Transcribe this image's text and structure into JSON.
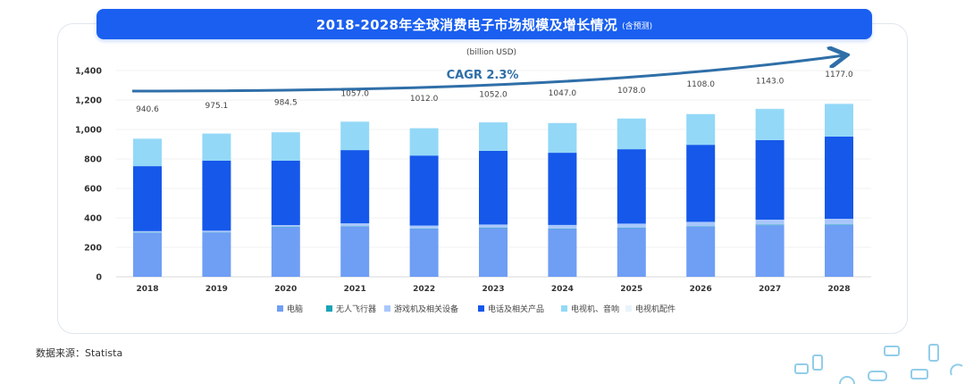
{
  "header": {
    "title": "2018-2028年全球消费电子市场规模及增长情况",
    "subtitle": "(含预测)"
  },
  "source": "数据来源：Statista",
  "chart_data": {
    "type": "bar",
    "stacked": true,
    "title": "2018-2028年全球消费电子市场规模及增长情况 (含预测)",
    "unit_label": "(billion USD)",
    "xlabel": "",
    "ylabel": "",
    "ylim": [
      0,
      1400
    ],
    "yticks": [
      0,
      200,
      400,
      600,
      800,
      1000,
      1200,
      1400
    ],
    "ytick_labels": [
      "0",
      "200",
      "400",
      "600",
      "800",
      "1,000",
      "1,200",
      "1,400"
    ],
    "grid": true,
    "categories": [
      "2018",
      "2019",
      "2020",
      "2021",
      "2022",
      "2023",
      "2024",
      "2025",
      "2026",
      "2027",
      "2028"
    ],
    "totals": [
      940.6,
      975.1,
      984.5,
      1057.0,
      1012.0,
      1052.0,
      1047.0,
      1078.0,
      1108.0,
      1143.0,
      1177.0
    ],
    "total_labels": [
      "940.6",
      "975.1",
      "984.5",
      "1057.0",
      "1012.0",
      "1052.0",
      "1047.0",
      "1078.0",
      "1108.0",
      "1143.0",
      "1177.0"
    ],
    "series": [
      {
        "name": "电脑",
        "color": "#6f9ef5",
        "values": [
          298,
          300,
          336,
          340,
          325,
          330,
          325,
          330,
          340,
          350,
          352
        ]
      },
      {
        "name": "无人飞行器",
        "color": "#1aa3b8",
        "values": [
          2,
          2,
          3,
          3,
          3,
          3,
          3,
          3,
          3,
          4,
          4
        ]
      },
      {
        "name": "游戏机及相关设备",
        "color": "#a9c7fb",
        "values": [
          10,
          11,
          12,
          20,
          20,
          22,
          24,
          28,
          30,
          34,
          38
        ]
      },
      {
        "name": "电话及相关产品",
        "color": "#1558ea",
        "values": [
          441,
          475,
          437,
          497,
          475,
          500,
          490,
          505,
          523,
          540,
          558
        ]
      },
      {
        "name": "电视机、音响",
        "color": "#93d8f7",
        "values": [
          186,
          184,
          193,
          193,
          185,
          193,
          201,
          208,
          208,
          211,
          221
        ]
      },
      {
        "name": "电视机配件",
        "color": "#e3f3fb",
        "values": [
          3.6,
          3.1,
          3.5,
          4.0,
          4.0,
          4.0,
          4.0,
          4.0,
          4.0,
          4.0,
          4.0
        ]
      }
    ],
    "annotations": [
      {
        "text": "CAGR 2.3%",
        "type": "trend-arrow"
      }
    ],
    "legend": "bottom"
  }
}
